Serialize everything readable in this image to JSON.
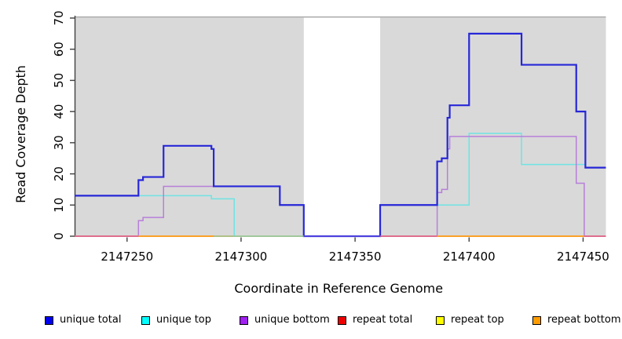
{
  "chart_data": {
    "type": "line",
    "subtype": "step-coverage",
    "title": "",
    "xlabel": "Coordinate in Reference Genome",
    "ylabel": "Read Coverage Depth",
    "xlim": [
      2147227,
      2147460
    ],
    "ylim": [
      0,
      70
    ],
    "x_ticks": [
      2147250,
      2147300,
      2147350,
      2147400,
      2147450
    ],
    "x_tick_labels": [
      "2147250",
      "2147300",
      "2147350",
      "2147400",
      "2147450"
    ],
    "y_ticks": [
      0,
      10,
      20,
      30,
      40,
      50,
      60,
      70
    ],
    "y_tick_labels": [
      "0",
      "10",
      "20",
      "30",
      "40",
      "50",
      "60",
      "70"
    ],
    "grid": false,
    "plot_bg_color": "#d9d9d9",
    "axis_color": "#404040",
    "box_top_edge_color": "#a3a3a3",
    "gap_region": {
      "from": 2147327.5,
      "to": 2147361,
      "color": "#ffffff"
    },
    "series": [
      {
        "name": "repeat total",
        "color": "#dd2222",
        "width": 1.2,
        "points": [
          [
            2147227,
            0
          ]
        ],
        "end": 2147460
      },
      {
        "name": "repeat top",
        "color": "#eeee00",
        "width": 1.2,
        "points": [
          [
            2147227,
            0
          ]
        ],
        "end": 2147460
      },
      {
        "name": "repeat bottom",
        "color": "#ff9d1e",
        "width": 1.6,
        "points": [
          [
            2147227,
            0
          ]
        ],
        "end": 2147460
      },
      {
        "name": "unique top",
        "color": "#6fe3e3",
        "width": 1.5,
        "points": [
          [
            2147227,
            13
          ],
          [
            2147287,
            12
          ],
          [
            2147297,
            0
          ],
          [
            2147361,
            10
          ],
          [
            2147400,
            33
          ],
          [
            2147423,
            23
          ],
          [
            2147451,
            22
          ]
        ],
        "end": 2147460
      },
      {
        "name": "unique bottom",
        "color": "#b77fd9",
        "width": 1.5,
        "points": [
          [
            2147227,
            0
          ],
          [
            2147255,
            5
          ],
          [
            2147257,
            6
          ],
          [
            2147266,
            16
          ],
          [
            2147317,
            10
          ],
          [
            2147327.5,
            0
          ],
          [
            2147386,
            14
          ],
          [
            2147388,
            15
          ],
          [
            2147390.5,
            28
          ],
          [
            2147391.5,
            32
          ],
          [
            2147447,
            17
          ],
          [
            2147450.5,
            0
          ]
        ],
        "end": 2147460
      },
      {
        "name": "unique total",
        "color": "#2727d8",
        "width": 2.2,
        "points": [
          [
            2147227,
            13
          ],
          [
            2147255,
            18
          ],
          [
            2147257,
            19
          ],
          [
            2147266,
            29
          ],
          [
            2147287,
            28
          ],
          [
            2147288,
            16
          ],
          [
            2147317,
            10
          ],
          [
            2147327.5,
            0
          ],
          [
            2147361,
            10
          ],
          [
            2147386,
            24
          ],
          [
            2147388,
            25
          ],
          [
            2147390.5,
            38
          ],
          [
            2147391.5,
            42
          ],
          [
            2147400,
            65
          ],
          [
            2147423,
            55
          ],
          [
            2147447,
            40
          ],
          [
            2147451,
            22
          ]
        ],
        "end": 2147460
      }
    ],
    "baseline_segments": [
      {
        "from": 2147227,
        "to": 2147255,
        "color": "#e2628c"
      },
      {
        "from": 2147255,
        "to": 2147288,
        "color": "#ff9d1e"
      },
      {
        "from": 2147288,
        "to": 2147327.5,
        "color": "#9cc89c"
      },
      {
        "from": 2147327.5,
        "to": 2147361,
        "color": "#5b4be0"
      },
      {
        "from": 2147361,
        "to": 2147386,
        "color": "#e2628c"
      },
      {
        "from": 2147386,
        "to": 2147450.5,
        "color": "#ff9d1e"
      },
      {
        "from": 2147450.5,
        "to": 2147460,
        "color": "#e2628c"
      }
    ],
    "legend": {
      "position": "bottom",
      "items": [
        {
          "label": "unique total",
          "color": "#0000ee"
        },
        {
          "label": "unique top",
          "color": "#00ffff"
        },
        {
          "label": "unique bottom",
          "color": "#a020f0"
        },
        {
          "label": "repeat total",
          "color": "#ee0000"
        },
        {
          "label": "repeat top",
          "color": "#ffff00"
        },
        {
          "label": "repeat bottom",
          "color": "#ff9d00"
        }
      ]
    }
  }
}
